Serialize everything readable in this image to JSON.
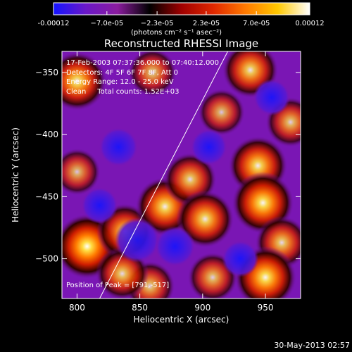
{
  "chart_data": {
    "type": "heatmap",
    "title": "Reconstructed RHESSI Image",
    "xlabel": "Heliocentric X (arcsec)",
    "ylabel": "Heliocentric Y (arcsec)",
    "xlim": [
      788,
      978
    ],
    "ylim": [
      -532,
      -333
    ],
    "x_ticks": [
      800,
      850,
      900,
      950
    ],
    "y_ticks": [
      -350,
      -400,
      -450,
      -500
    ],
    "grid": false,
    "colorbar": {
      "range": [
        -0.00012,
        0.00012
      ],
      "tick_values": [
        -0.00012,
        -7e-05,
        -2.3e-05,
        2.3e-05,
        7e-05,
        0.00012
      ],
      "tick_labels": [
        "-0.00012",
        "−7.0e-05",
        "−2.3e-05",
        "2.3e-05",
        "7.0e-05",
        "0.00012"
      ],
      "unit_label": "(photons cm⁻² s⁻¹ asec⁻²)",
      "colors": [
        "#1414ff",
        "#6a18c8",
        "#8a1c9e",
        "#000000",
        "#a00000",
        "#e02800",
        "#ff7a00",
        "#ffc800",
        "#ffffff"
      ]
    },
    "annotations": {
      "time_range": "17-Feb-2003 07:37:36.000 to 07:40:12.000",
      "detectors": "Detectors: 4F 5F 6F 7F 8F, Att 0",
      "energy": "Energy Range: 12.0 - 25.0 keV",
      "clean": "Clean     Total counts: 1.52E+03",
      "peak": "Position of Peak = [791,-517]"
    },
    "limb_line": [
      {
        "x": 818,
        "y": -532
      },
      {
        "x": 920,
        "y": -333
      }
    ],
    "bright_sources": [
      {
        "x": 800,
        "y": -357,
        "sign": 1,
        "amp": 0.8
      },
      {
        "x": 808,
        "y": -490,
        "sign": 1,
        "amp": 1.0
      },
      {
        "x": 838,
        "y": -478,
        "sign": 1,
        "amp": 0.7
      },
      {
        "x": 870,
        "y": -458,
        "sign": 1,
        "amp": 0.8
      },
      {
        "x": 890,
        "y": -436,
        "sign": 1,
        "amp": 0.6
      },
      {
        "x": 902,
        "y": -468,
        "sign": 1,
        "amp": 0.75
      },
      {
        "x": 938,
        "y": -348,
        "sign": 1,
        "amp": 0.7
      },
      {
        "x": 944,
        "y": -425,
        "sign": 1,
        "amp": 0.8
      },
      {
        "x": 948,
        "y": -455,
        "sign": 1,
        "amp": 0.9
      },
      {
        "x": 963,
        "y": -487,
        "sign": 1,
        "amp": 0.6
      },
      {
        "x": 950,
        "y": -515,
        "sign": 1,
        "amp": 0.9
      },
      {
        "x": 908,
        "y": -515,
        "sign": 1,
        "amp": 0.5
      },
      {
        "x": 858,
        "y": -522,
        "sign": 1,
        "amp": 0.5
      },
      {
        "x": 836,
        "y": -512,
        "sign": 1,
        "amp": 0.6
      },
      {
        "x": 860,
        "y": -350,
        "sign": 1,
        "amp": 0.45
      },
      {
        "x": 970,
        "y": -390,
        "sign": 1,
        "amp": 0.5
      },
      {
        "x": 915,
        "y": -382,
        "sign": 1,
        "amp": 0.4
      },
      {
        "x": 800,
        "y": -430,
        "sign": 1,
        "amp": 0.4
      },
      {
        "x": 848,
        "y": -485,
        "sign": -1,
        "amp": 0.7
      },
      {
        "x": 833,
        "y": -410,
        "sign": -1,
        "amp": 0.45
      },
      {
        "x": 878,
        "y": -490,
        "sign": -1,
        "amp": 0.5
      },
      {
        "x": 905,
        "y": -410,
        "sign": -1,
        "amp": 0.35
      },
      {
        "x": 955,
        "y": -370,
        "sign": -1,
        "amp": 0.35
      },
      {
        "x": 930,
        "y": -500,
        "sign": -1,
        "amp": 0.35
      },
      {
        "x": 818,
        "y": -457,
        "sign": -1,
        "amp": 0.35
      }
    ]
  },
  "footer": {
    "timestamp": "30-May-2013 02:57"
  }
}
